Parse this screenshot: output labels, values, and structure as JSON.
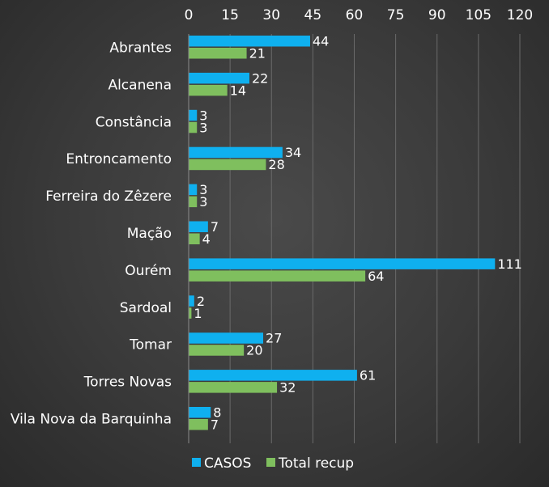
{
  "chart_data": {
    "type": "bar",
    "orientation": "horizontal",
    "categories": [
      "Abrantes",
      "Alcanena",
      "Constância",
      "Entroncamento",
      "Ferreira do Zêzere",
      "Mação",
      "Ourém",
      "Sardoal",
      "Tomar",
      "Torres Novas",
      "Vila Nova da Barquinha"
    ],
    "series": [
      {
        "name": "CASOS",
        "color": "#0fb0ef",
        "values": [
          44,
          22,
          3,
          34,
          3,
          7,
          111,
          2,
          27,
          61,
          8
        ]
      },
      {
        "name": "Total recup",
        "color": "#7fbf5e",
        "values": [
          21,
          14,
          3,
          28,
          3,
          4,
          64,
          1,
          20,
          32,
          7
        ]
      }
    ],
    "xticks": [
      0,
      15,
      30,
      45,
      60,
      75,
      90,
      105,
      120
    ],
    "xlim": [
      0,
      120
    ],
    "xaxis_position": "top",
    "grid": true,
    "data_labels": true,
    "legend": "bottom",
    "title": "",
    "xlabel": "",
    "ylabel": ""
  }
}
